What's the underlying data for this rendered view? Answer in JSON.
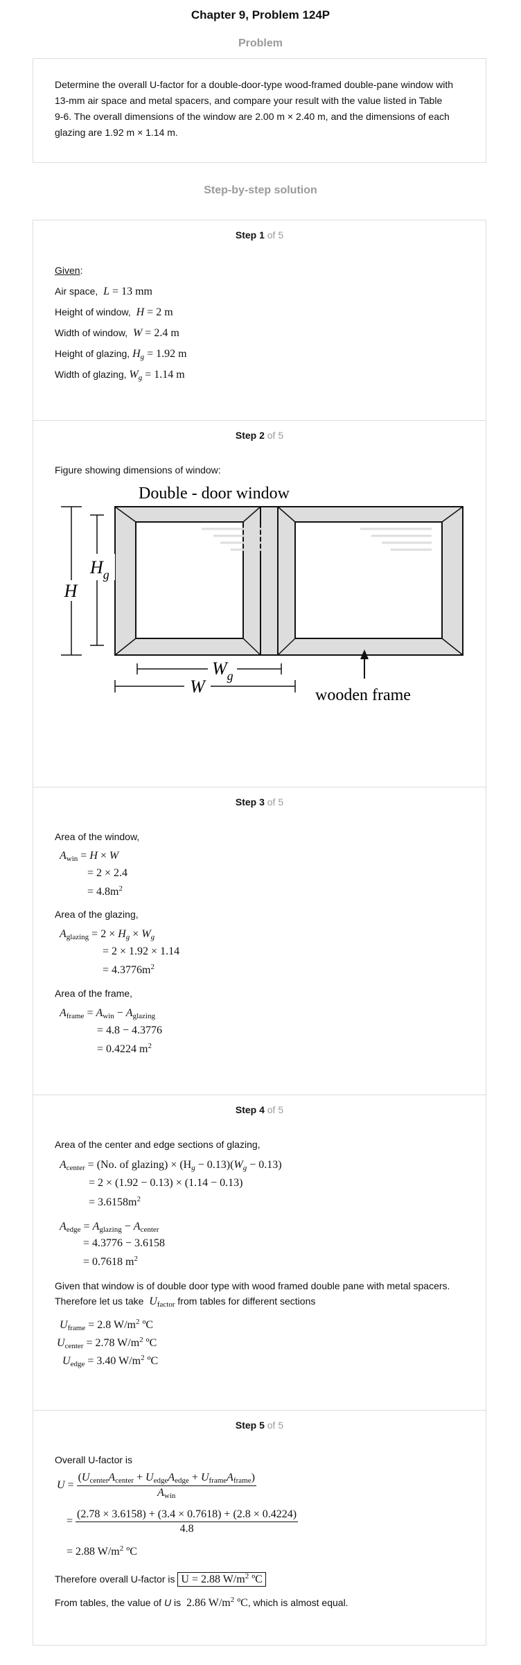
{
  "header": {
    "title": "Chapter 9, Problem 124P"
  },
  "problem": {
    "heading": "Problem",
    "lines": [
      "Determine the overall U-factor for a double-door-type wood-framed double-pane window with",
      "13-mm air space and metal spacers, and compare your result with the value listed in Table",
      "9-6. The overall dimensions of the window are 2.00 m × 2.40 m, and the dimensions of each",
      "glazing are 1.92 m × 1.14 m."
    ]
  },
  "solution": {
    "heading": "Step-by-step solution"
  },
  "steps": {
    "of_label": "of 5",
    "s1": {
      "label": "Step 1",
      "given": "Given",
      "air": "Air space,",
      "height": "Height of window,",
      "width": "Width of window,",
      "hg": "Height of glazing,",
      "wg": "Width of glazing,",
      "air_val": "13 mm",
      "h_val": "2 m",
      "w_val": "2.4 m",
      "hg_val": "1.92 m",
      "wg_val": "1.14 m"
    },
    "s2": {
      "label": "Step 2",
      "text": "Figure showing dimensions of window:",
      "fig_title": "Double - door window",
      "fig_frame": "wooden frame"
    },
    "s3": {
      "label": "Step 3",
      "a_win": "Area of the window,",
      "a_glz": "Area of the glazing,",
      "a_frm": "Area of the frame,",
      "w1": "2 × 2.4",
      "w2": "4.8m",
      "g1": "2 × 1.92 × 1.14",
      "g2": "4.3776m",
      "f1": "4.8 − 4.3776",
      "f2": "0.4224 m"
    },
    "s4": {
      "label": "Step 4",
      "intro": "Area of the center and edge sections of glazing,",
      "c0": "(No. of glazing) × (H",
      "c1": "2 × (1.92 − 0.13) × (1.14 − 0.13)",
      "c2": "3.6158m",
      "e1": "4.3776 − 3.6158",
      "e2": "0.7618 m",
      "given1": "Given that window is of double door type with wood framed double pane with metal spacers.",
      "given2": "Therefore let us take",
      "given3": "from tables for different sections",
      "uf": "2.8 W/m",
      "uc": "2.78 W/m",
      "ue": "3.40 W/m"
    },
    "s5": {
      "label": "Step 5",
      "intro": "Overall U-factor is",
      "num2": "(2.78 × 3.6158) + (3.4 × 0.7618) + (2.8 × 0.4224)",
      "den2": "4.8",
      "res": "2.88 W/m",
      "therefore": "Therefore overall U-factor is",
      "final": "U = 2.88 W/m",
      "tables_a": "From tables, the value of",
      "tables_b": "is",
      "tables_val": "2.86 W/m",
      "tables_c": ", which is almost equal."
    }
  }
}
